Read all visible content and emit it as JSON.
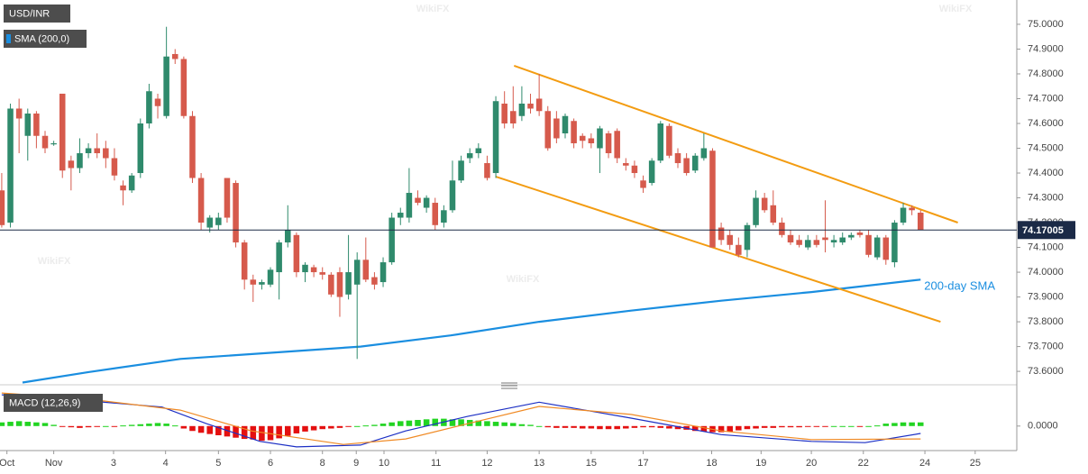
{
  "chart_data": {
    "type": "candlestick",
    "instrument": "USD/INR",
    "watermark": "WikiFX",
    "up_color": "#2f8a6c",
    "down_color": "#d65a4c",
    "open": [
      74.33,
      74.2,
      74.66,
      74.55,
      74.64,
      74.55,
      74.52,
      74.72,
      74.45,
      74.42,
      74.48,
      74.5,
      74.5,
      74.46,
      74.35,
      74.33,
      74.4,
      74.6,
      74.7,
      74.63,
      74.88,
      74.86,
      74.63,
      74.38,
      74.18,
      74.19,
      74.38,
      74.36,
      74.12,
      73.97,
      73.95,
      73.95,
      74.0,
      74.12,
      74.15,
      74.0,
      74.02,
      74.0,
      73.99,
      74.0,
      73.91,
      73.95,
      74.05,
      73.98,
      73.96,
      74.04,
      74.22,
      74.22,
      74.3,
      74.26,
      74.28,
      74.2,
      74.25,
      74.37,
      74.46,
      74.48,
      74.44,
      74.4,
      74.68,
      74.65,
      74.63,
      74.68,
      74.7,
      74.65,
      74.62,
      74.56,
      74.61,
      74.55,
      74.54,
      74.5,
      74.56,
      74.57,
      74.44,
      74.43,
      74.37,
      74.36,
      74.45,
      74.59,
      74.48,
      74.46,
      74.41,
      74.46,
      74.49,
      74.18,
      74.15,
      74.11,
      74.09,
      74.19,
      74.3,
      74.27,
      74.2,
      74.15,
      74.13,
      74.1,
      74.13,
      74.14,
      74.12,
      74.12,
      74.14,
      74.16,
      74.15,
      74.06,
      74.14,
      74.04,
      74.2,
      74.26,
      74.24
    ],
    "high": [
      74.4,
      74.68,
      74.7,
      74.66,
      74.65,
      74.57,
      74.53,
      74.72,
      74.47,
      74.54,
      74.52,
      74.56,
      74.53,
      74.5,
      74.37,
      74.4,
      74.62,
      74.76,
      74.72,
      74.99,
      74.9,
      74.87,
      74.65,
      74.4,
      74.23,
      74.24,
      74.38,
      74.37,
      74.13,
      73.99,
      73.97,
      74.02,
      74.13,
      74.27,
      74.16,
      74.04,
      74.03,
      74.02,
      74.0,
      74.02,
      74.15,
      74.08,
      74.14,
      74.0,
      74.06,
      74.24,
      74.26,
      74.42,
      74.33,
      74.31,
      74.3,
      74.27,
      74.45,
      74.47,
      74.5,
      74.52,
      74.47,
      74.71,
      74.73,
      74.75,
      74.75,
      74.72,
      74.8,
      74.67,
      74.65,
      74.64,
      74.62,
      74.56,
      74.56,
      74.59,
      74.57,
      74.58,
      74.46,
      74.45,
      74.39,
      74.46,
      74.61,
      74.6,
      74.5,
      74.48,
      74.48,
      74.56,
      74.5,
      74.2,
      74.17,
      74.14,
      74.2,
      74.33,
      74.32,
      74.33,
      74.22,
      74.17,
      74.15,
      74.15,
      74.15,
      74.29,
      74.15,
      74.16,
      74.16,
      74.17,
      74.17,
      74.15,
      74.15,
      74.21,
      74.28,
      74.27,
      74.25
    ],
    "low": [
      74.18,
      74.18,
      74.48,
      74.45,
      74.5,
      74.48,
      74.51,
      74.38,
      74.33,
      74.4,
      74.46,
      74.46,
      74.42,
      74.37,
      74.27,
      74.32,
      74.38,
      74.58,
      74.62,
      74.62,
      74.84,
      74.62,
      74.36,
      74.17,
      74.16,
      74.17,
      74.2,
      74.1,
      73.93,
      73.88,
      73.93,
      73.94,
      73.89,
      74.1,
      73.98,
      73.96,
      73.98,
      73.97,
      73.9,
      73.82,
      73.89,
      73.65,
      73.96,
      73.93,
      73.94,
      74.03,
      74.19,
      74.2,
      74.27,
      74.24,
      74.17,
      74.18,
      74.24,
      74.36,
      74.44,
      74.46,
      74.37,
      74.38,
      74.58,
      74.58,
      74.61,
      74.64,
      74.63,
      74.49,
      74.52,
      74.54,
      74.5,
      74.5,
      74.5,
      74.4,
      74.46,
      74.44,
      74.41,
      74.38,
      74.32,
      74.35,
      74.44,
      74.46,
      74.42,
      74.39,
      74.4,
      74.45,
      74.1,
      74.11,
      74.09,
      74.06,
      74.06,
      74.18,
      74.24,
      74.19,
      74.14,
      74.11,
      74.1,
      74.09,
      74.1,
      74.08,
      74.1,
      74.11,
      74.13,
      74.14,
      74.06,
      74.05,
      74.03,
      74.02,
      74.19,
      74.23,
      74.17
    ],
    "close": [
      74.19,
      74.66,
      74.62,
      74.64,
      74.55,
      74.5,
      74.52,
      74.41,
      74.42,
      74.48,
      74.5,
      74.48,
      74.46,
      74.39,
      74.33,
      74.39,
      74.6,
      74.73,
      74.67,
      74.87,
      74.86,
      74.63,
      74.38,
      74.2,
      74.22,
      74.22,
      74.22,
      74.12,
      73.97,
      73.95,
      73.96,
      74.01,
      74.12,
      74.17,
      74.0,
      74.03,
      74.0,
      73.99,
      73.91,
      73.9,
      74.0,
      74.05,
      73.97,
      73.95,
      74.04,
      74.22,
      74.24,
      74.32,
      74.28,
      74.3,
      74.19,
      74.25,
      74.37,
      74.45,
      74.48,
      74.5,
      74.38,
      74.69,
      74.6,
      74.6,
      74.68,
      74.66,
      74.65,
      74.5,
      74.54,
      74.63,
      74.52,
      74.53,
      74.52,
      74.58,
      74.48,
      74.46,
      74.43,
      74.4,
      74.34,
      74.45,
      74.6,
      74.47,
      74.44,
      74.4,
      74.47,
      74.5,
      74.1,
      74.13,
      74.11,
      74.07,
      74.19,
      74.3,
      74.25,
      74.2,
      74.15,
      74.12,
      74.11,
      74.13,
      74.11,
      74.13,
      74.13,
      74.14,
      74.15,
      74.15,
      74.07,
      74.14,
      74.05,
      74.2,
      74.26,
      74.25,
      74.17
    ],
    "ylim": [
      73.564,
      75.098
    ],
    "yticks": [
      {
        "value": 73.6,
        "label": "73.6000"
      },
      {
        "value": 73.7,
        "label": "73.7000"
      },
      {
        "value": 73.8,
        "label": "73.8000"
      },
      {
        "value": 73.9,
        "label": "73.9000"
      },
      {
        "value": 74.0,
        "label": "74.0000"
      },
      {
        "value": 74.1,
        "label": "74.1000"
      },
      {
        "value": 74.2,
        "label": "74.2000"
      },
      {
        "value": 74.3,
        "label": "74.3000"
      },
      {
        "value": 74.4,
        "label": "74.4000"
      },
      {
        "value": 74.5,
        "label": "74.5000"
      },
      {
        "value": 74.6,
        "label": "74.6000"
      },
      {
        "value": 74.7,
        "label": "74.7000"
      },
      {
        "value": 74.8,
        "label": "74.8000"
      },
      {
        "value": 74.9,
        "label": "74.9000"
      },
      {
        "value": 75.0,
        "label": "75.0000"
      }
    ],
    "xlim": [
      -0.2,
      117.1
    ],
    "xticks": [
      {
        "value": 0.6,
        "label": "Oct"
      },
      {
        "value": 6.0,
        "label": "Nov"
      },
      {
        "value": 12.9,
        "label": "3"
      },
      {
        "value": 18.9,
        "label": "4"
      },
      {
        "value": 25.0,
        "label": "5"
      },
      {
        "value": 31.0,
        "label": "6"
      },
      {
        "value": 37.0,
        "label": "8"
      },
      {
        "value": 40.9,
        "label": "9"
      },
      {
        "value": 44.1,
        "label": "10"
      },
      {
        "value": 50.1,
        "label": "11"
      },
      {
        "value": 56.0,
        "label": "12"
      },
      {
        "value": 62.0,
        "label": "13"
      },
      {
        "value": 68.0,
        "label": "15"
      },
      {
        "value": 74.0,
        "label": "17"
      },
      {
        "value": 81.9,
        "label": "18"
      },
      {
        "value": 87.6,
        "label": "19"
      },
      {
        "value": 93.4,
        "label": "20"
      },
      {
        "value": 99.4,
        "label": "22"
      },
      {
        "value": 106.5,
        "label": "24"
      },
      {
        "value": 112.3,
        "label": "25"
      }
    ],
    "last_price": 74.17005,
    "last_price_color": "#1b2a47",
    "sma": {
      "name": "SMA (200,0)",
      "color": "#1a8ee0",
      "annotation": "200-day SMA",
      "x": [
        2.4,
        10,
        20.6,
        31,
        41.4,
        51.8,
        62,
        72.6,
        83,
        93.4,
        106
      ],
      "values": [
        73.555,
        73.597,
        73.65,
        73.675,
        73.7,
        73.745,
        73.8,
        73.845,
        73.885,
        73.92,
        73.97
      ]
    },
    "trendlines": [
      {
        "color": "#f39c12",
        "x": [
          59.1,
          110.3
        ],
        "values": [
          74.833,
          74.2
        ]
      },
      {
        "color": "#f39c12",
        "x": [
          57.0,
          108.3
        ],
        "values": [
          74.385,
          73.8
        ]
      }
    ],
    "macd": {
      "name": "MACD (12,26,9)",
      "ylim": [
        -0.04,
        0.06
      ],
      "yticks": [
        {
          "value": 0,
          "label": "0.0000"
        }
      ],
      "hist_up_color": "#22d422",
      "hist_down_color": "#e41010",
      "histogram": [
        0.006,
        0.007,
        0.008,
        0.007,
        0.006,
        0.005,
        0.002,
        -0.001,
        -0.002,
        -0.003,
        -0.002,
        -0.001,
        0.0,
        -0.001,
        0.001,
        0.002,
        0.003,
        0.004,
        0.005,
        0.004,
        0.001,
        -0.004,
        -0.008,
        -0.011,
        -0.013,
        -0.015,
        -0.017,
        -0.019,
        -0.021,
        -0.022,
        -0.024,
        -0.023,
        -0.02,
        -0.016,
        -0.012,
        -0.009,
        -0.007,
        -0.005,
        -0.004,
        -0.003,
        -0.001,
        0.0,
        0.001,
        0.002,
        0.004,
        0.006,
        0.008,
        0.009,
        0.01,
        0.011,
        0.012,
        0.012,
        0.011,
        0.011,
        0.01,
        0.009,
        0.008,
        0.007,
        0.006,
        0.005,
        0.003,
        0.002,
        0.0,
        -0.002,
        -0.003,
        -0.003,
        -0.003,
        -0.004,
        -0.004,
        -0.005,
        -0.005,
        -0.005,
        -0.004,
        -0.003,
        -0.002,
        -0.002,
        -0.003,
        -0.004,
        -0.005,
        -0.006,
        -0.008,
        -0.009,
        -0.01,
        -0.01,
        -0.009,
        -0.007,
        -0.005,
        -0.004,
        -0.003,
        -0.003,
        -0.002,
        -0.002,
        -0.002,
        -0.001,
        -0.001,
        -0.001,
        0.0,
        0.0,
        0.0,
        -0.001,
        0.0,
        0.001,
        0.004,
        0.005,
        0.006,
        0.006,
        0.006
      ],
      "lines": [
        {
          "color": "#1c2fc4",
          "x": [
            0,
            10,
            18.5,
            23.6,
            29.8,
            34,
            41.4,
            46.6,
            53.8,
            62,
            72.6,
            83,
            93.4,
            99.6,
            106
          ],
          "values": [
            0.051,
            0.041,
            0.031,
            0.004,
            -0.025,
            -0.034,
            -0.031,
            -0.008,
            0.016,
            0.039,
            0.013,
            -0.014,
            -0.025,
            -0.027,
            -0.012
          ]
        },
        {
          "color": "#f08a24",
          "x": [
            0,
            10,
            20.6,
            28.8,
            39.4,
            46.6,
            53.8,
            62,
            72.6,
            83,
            93.4,
            106
          ],
          "values": [
            0.054,
            0.044,
            0.026,
            -0.008,
            -0.03,
            -0.021,
            0.004,
            0.032,
            0.019,
            -0.008,
            -0.022,
            -0.021
          ]
        }
      ]
    }
  }
}
